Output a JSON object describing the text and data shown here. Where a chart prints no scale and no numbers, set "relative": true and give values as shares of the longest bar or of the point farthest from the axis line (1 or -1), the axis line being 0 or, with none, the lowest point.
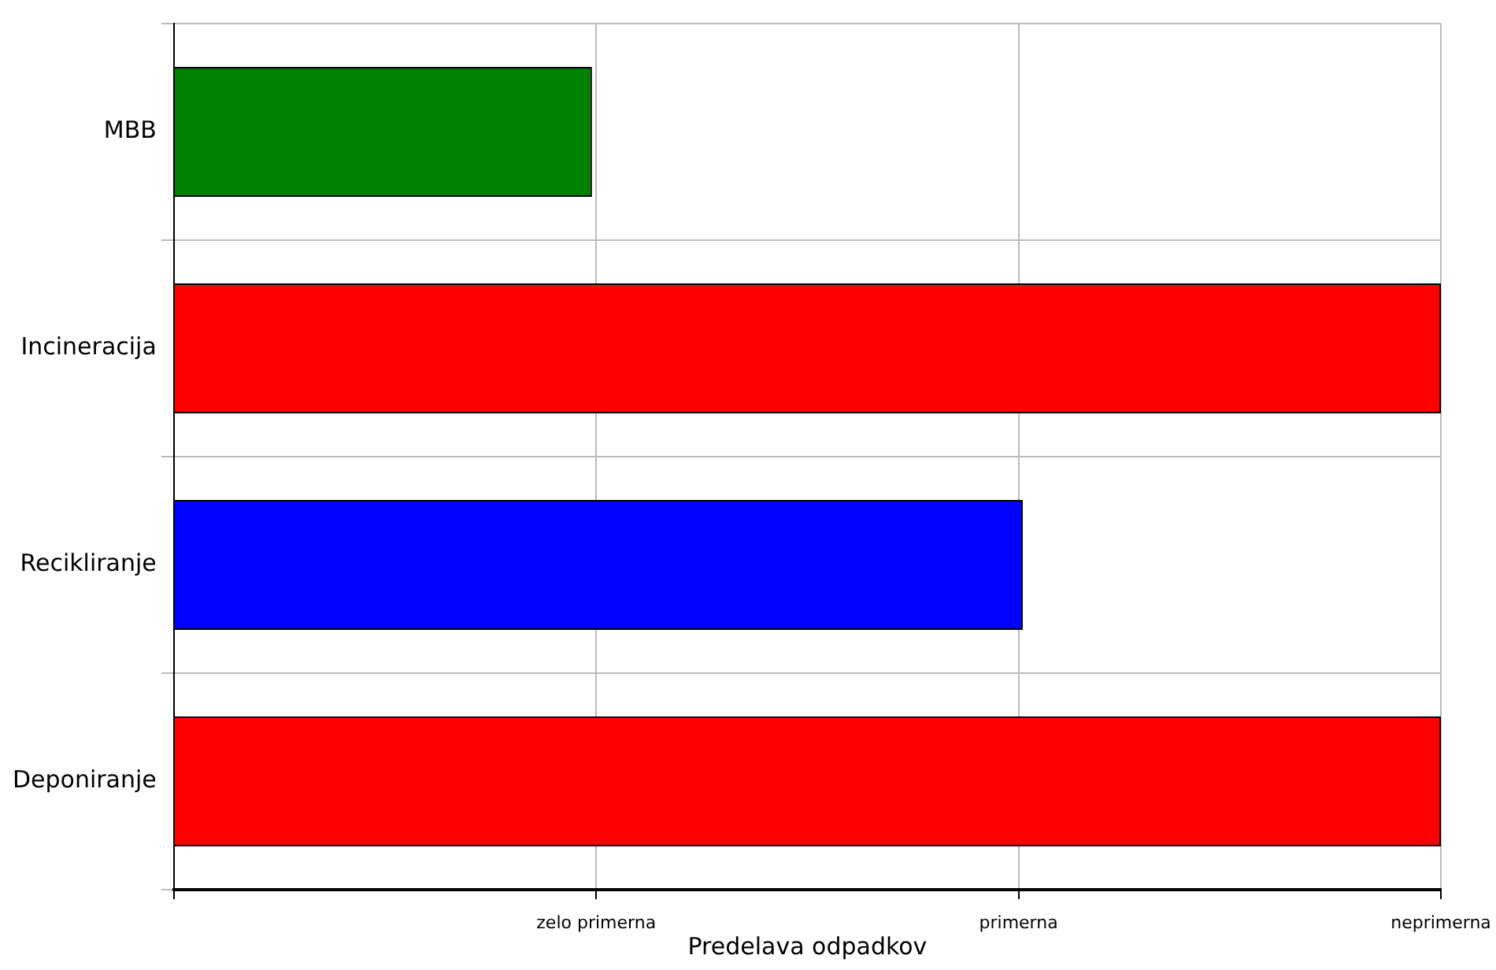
{
  "chart_data": {
    "type": "bar",
    "orientation": "horizontal",
    "relative": true,
    "xlabel": "Predelava odpadkov",
    "categories": [
      "MBB",
      "Incineracija",
      "Recikliranje",
      "Deponiranje"
    ],
    "values": [
      0.33,
      1,
      0.67,
      1
    ],
    "colors": [
      "#008000",
      "#ff0000",
      "#0000ff",
      "#ff0000"
    ],
    "annotations": [
      "zelo primerna",
      "primerna",
      "neprimerna"
    ],
    "grid": true,
    "legend": false
  }
}
